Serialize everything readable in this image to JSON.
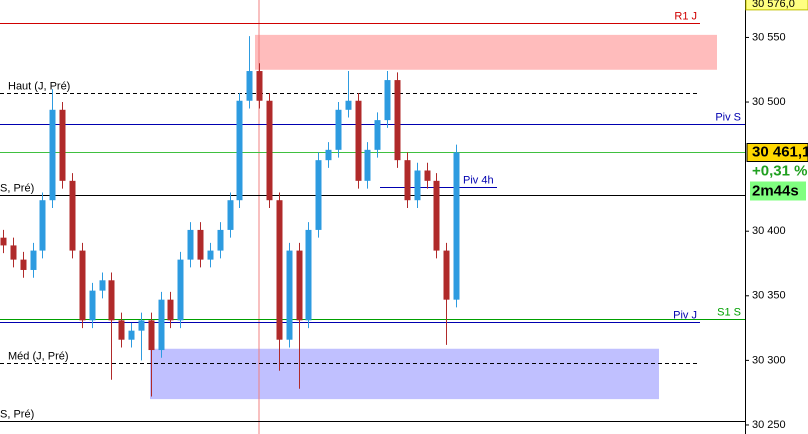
{
  "chart_data": {
    "type": "candlestick",
    "ylim": [
      30243,
      30579
    ],
    "yticks": [
      {
        "value": 30550,
        "label": "30 550"
      },
      {
        "value": 30500,
        "label": "30 500"
      },
      {
        "value": 30400,
        "label": "30 400"
      },
      {
        "value": 30350,
        "label": "30 350"
      },
      {
        "value": 30300,
        "label": "30 300"
      },
      {
        "value": 30250,
        "label": "30 250"
      }
    ],
    "top_label": {
      "value": 30576,
      "label": "30 576,0"
    },
    "series": [
      {
        "up_color": "#2d9be0",
        "down_color": "#b02a2a",
        "open": [
          30395,
          30389,
          30378,
          30370,
          30385,
          30424,
          30494,
          30439,
          30385,
          30331,
          30354,
          30362,
          30331,
          30316,
          30323,
          30331,
          30308,
          30347,
          30331,
          30378,
          30401,
          30378,
          30385,
          30401,
          30424,
          30501,
          30524,
          30501,
          30424,
          30316,
          30385,
          30331,
          30401,
          30455,
          30463,
          30494,
          30501,
          30439,
          30463,
          30486,
          30517,
          30455,
          30424,
          30447,
          30439,
          30385,
          30347
        ],
        "high": [
          30401,
          30395,
          30384,
          30391,
          30430,
          30510,
          30500,
          30445,
          30391,
          30360,
          30368,
          30368,
          30337,
          30329,
          30337,
          30337,
          30353,
          30353,
          30384,
          30407,
          30407,
          30391,
          30407,
          30430,
          30507,
          30551,
          30530,
          30507,
          30430,
          30391,
          30391,
          30407,
          30461,
          30469,
          30500,
          30524,
          30507,
          30469,
          30492,
          30524,
          30523,
          30461,
          30453,
          30453,
          30445,
          30391,
          30467
        ],
        "low": [
          30383,
          30372,
          30364,
          30364,
          30379,
          30418,
          30433,
          30379,
          30325,
          30325,
          30348,
          30285,
          30310,
          30310,
          30300,
          30272,
          30302,
          30325,
          30325,
          30372,
          30372,
          30372,
          30379,
          30395,
          30418,
          30495,
          30495,
          30418,
          30292,
          30310,
          30278,
          30325,
          30395,
          30449,
          30457,
          30488,
          30433,
          30433,
          30457,
          30480,
          30449,
          30418,
          30418,
          30433,
          30379,
          30312,
          30341
        ],
        "close": [
          30389,
          30378,
          30370,
          30385,
          30424,
          30494,
          30439,
          30385,
          30331,
          30354,
          30362,
          30331,
          30316,
          30323,
          30331,
          30308,
          30347,
          30331,
          30378,
          30401,
          30378,
          30385,
          30401,
          30424,
          30501,
          30524,
          30501,
          30424,
          30316,
          30385,
          30331,
          30401,
          30455,
          30463,
          30494,
          30501,
          30439,
          30463,
          30486,
          30517,
          30455,
          30424,
          30447,
          30439,
          30385,
          30347,
          30461
        ]
      }
    ],
    "zones": [
      {
        "from": 30525,
        "to": 30552,
        "color": "#ffbcbc"
      },
      {
        "from": 30270,
        "to": 30309,
        "color": "#c0c0ff"
      }
    ],
    "levels": [
      {
        "label": "R1 J",
        "value": 30561,
        "color": "#d00000",
        "style": "solid"
      },
      {
        "label": "Haut (J, Pré)",
        "value": 30507,
        "color": "#000000",
        "style": "dashed"
      },
      {
        "label": "Piv S",
        "value": 30483,
        "color": "#0000b0",
        "style": "solid"
      },
      {
        "label": "Piv 4h",
        "value": 30434,
        "color": "#0000b0",
        "style": "solid"
      },
      {
        "label": "S, Pré)",
        "value": 30428,
        "color": "#000000",
        "style": "solid"
      },
      {
        "label": "S1 S",
        "value": 30332,
        "color": "#00a000",
        "style": "solid"
      },
      {
        "label": "Piv J",
        "value": 30330,
        "color": "#0000b0",
        "style": "solid"
      },
      {
        "label": "Méd (J, Pré)",
        "value": 30298,
        "color": "#000000",
        "style": "dashed"
      },
      {
        "label": "S, Pré)",
        "value": 30253,
        "color": "#000000",
        "style": "solid"
      }
    ],
    "price": {
      "value": 30461,
      "label": "30 461,1",
      "change": "+0,31 %",
      "timer": "2m44s",
      "color": "#40c040"
    }
  }
}
